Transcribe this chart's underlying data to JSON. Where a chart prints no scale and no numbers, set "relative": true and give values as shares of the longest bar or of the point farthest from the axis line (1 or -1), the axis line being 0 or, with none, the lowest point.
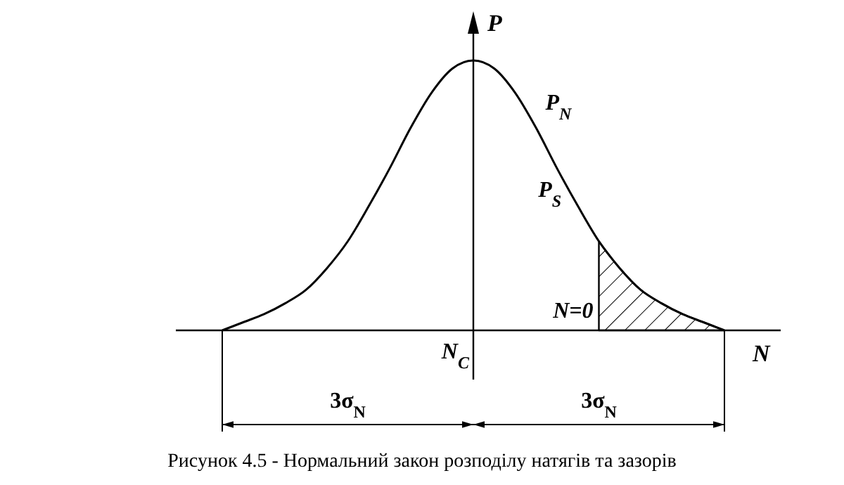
{
  "chart_data": {
    "type": "line",
    "title": "Рисунок 4.5 - Нормальний  закон розподілу натягів та зазорів",
    "xlabel": "N",
    "ylabel": "P",
    "relative": true,
    "categories": [
      null,
      null,
      null,
      null,
      null,
      null,
      null,
      null,
      null,
      null,
      null,
      null,
      null,
      null,
      null,
      null,
      null,
      null,
      null,
      null,
      null,
      null,
      null,
      null,
      null
    ],
    "series": [
      {
        "color": "#000000",
        "values": [
          0,
          0.03,
          0.06,
          0.1,
          0.15,
          0.23,
          0.33,
          0.46,
          0.6,
          0.75,
          0.88,
          0.97,
          1,
          0.97,
          0.88,
          0.75,
          0.6,
          0.46,
          0.33,
          0.23,
          0.15,
          0.1,
          0.06,
          0.03,
          0
        ]
      },
      {
        "type": "area",
        "color": "#000000",
        "values": [
          null,
          null,
          null,
          null,
          null,
          null,
          null,
          null,
          null,
          null,
          null,
          null,
          null,
          null,
          null,
          null,
          null,
          null,
          0.33,
          0.23,
          0.15,
          0.1,
          0.06,
          0.03,
          0
        ]
      }
    ],
    "annotations": [
      "N$_{C}$",
      "P$_{N}$",
      "P$_{S}$",
      "N=0",
      "3σ$_{N}$",
      "3σ$_{N}$"
    ]
  }
}
